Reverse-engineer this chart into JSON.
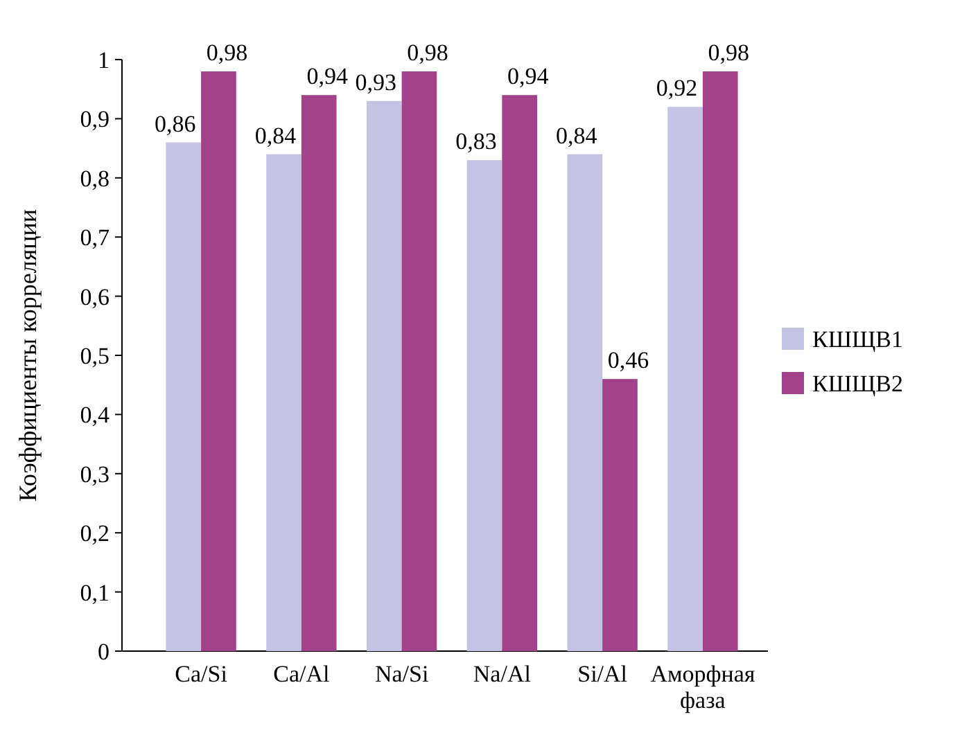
{
  "chart_data": {
    "type": "bar",
    "ylabel": "Коэффициенты корреляции",
    "categories": [
      "Ca/Si",
      "Ca/Al",
      "Na/Si",
      "Na/Al",
      "Si/Al",
      "Аморфная фаза"
    ],
    "series": [
      {
        "name": "КШЩВ1",
        "color": "#c5c3e3",
        "values": [
          0.86,
          0.84,
          0.93,
          0.83,
          0.84,
          0.92
        ],
        "value_labels": [
          "0,86",
          "0,84",
          "0,93",
          "0,83",
          "0,84",
          "0,92"
        ]
      },
      {
        "name": "КШЩВ2",
        "color": "#a3428a",
        "values": [
          0.98,
          0.94,
          0.98,
          0.94,
          0.46,
          0.98
        ],
        "value_labels": [
          "0,98",
          "0,94",
          "0,98",
          "0,94",
          "0,46",
          "0,98"
        ]
      }
    ],
    "ylim": [
      0,
      1
    ],
    "yticks": [
      0,
      {
        "value": 0.1,
        "label": "0,1"
      },
      {
        "value": 0.2,
        "label": "0,2"
      },
      {
        "value": 0.3,
        "label": "0,3"
      },
      {
        "value": 0.4,
        "label": "0,4"
      },
      {
        "value": 0.5,
        "label": "0,5"
      },
      {
        "value": 0.6,
        "label": "0,6"
      },
      {
        "value": 0.7,
        "label": "0,7"
      },
      {
        "value": 0.8,
        "label": "0,8"
      },
      {
        "value": 0.9,
        "label": "0,9"
      },
      1
    ],
    "grid": false,
    "legend": "right"
  }
}
